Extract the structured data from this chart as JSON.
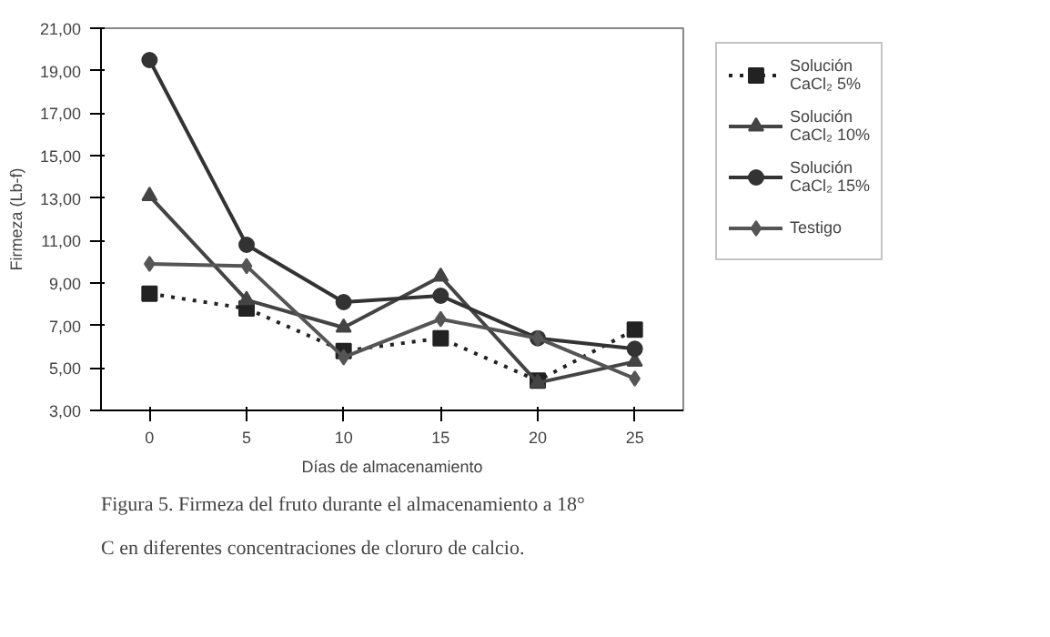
{
  "chart_data": {
    "type": "line",
    "xlabel": "Días de almacenamiento",
    "ylabel": "Firmeza (Lb-f)",
    "categories": [
      "0",
      "5",
      "10",
      "15",
      "20",
      "25"
    ],
    "ylim": [
      3,
      21
    ],
    "yticks": [
      {
        "value": 3,
        "label": "3,00"
      },
      {
        "value": 5,
        "label": "5,00"
      },
      {
        "value": 7,
        "label": "7,00"
      },
      {
        "value": 9,
        "label": "9,00"
      },
      {
        "value": 11,
        "label": "11,00"
      },
      {
        "value": 13,
        "label": "13,00"
      },
      {
        "value": 15,
        "label": "15,00"
      },
      {
        "value": 17,
        "label": "17,00"
      },
      {
        "value": 19,
        "label": "19,00"
      },
      {
        "value": 21,
        "label": "21,00"
      }
    ],
    "series": [
      {
        "name": "Solución CaCl₂ 5%",
        "color": "#222222",
        "marker": "square",
        "line_style": "dotted",
        "values": [
          8.5,
          7.8,
          5.8,
          6.4,
          4.4,
          6.8
        ]
      },
      {
        "name": "Solución CaCl₂ 10%",
        "color": "#444444",
        "marker": "triangle",
        "line_style": "solid",
        "values": [
          13.1,
          8.2,
          6.9,
          9.3,
          4.3,
          5.3
        ]
      },
      {
        "name": "Solución CaCl₂ 15%",
        "color": "#333333",
        "marker": "circle",
        "line_style": "solid",
        "values": [
          19.5,
          10.8,
          8.1,
          8.4,
          6.4,
          5.9
        ]
      },
      {
        "name": "Testigo",
        "color": "#555555",
        "marker": "diamond",
        "line_style": "solid",
        "values": [
          9.9,
          9.8,
          5.5,
          7.3,
          6.4,
          4.5
        ]
      }
    ],
    "grid": false,
    "legend": "right",
    "annotations": [
      "Figura 5. Firmeza del fruto durante el almacenamiento a 18° C en diferentes concentraciones de cloruro de calcio."
    ]
  }
}
